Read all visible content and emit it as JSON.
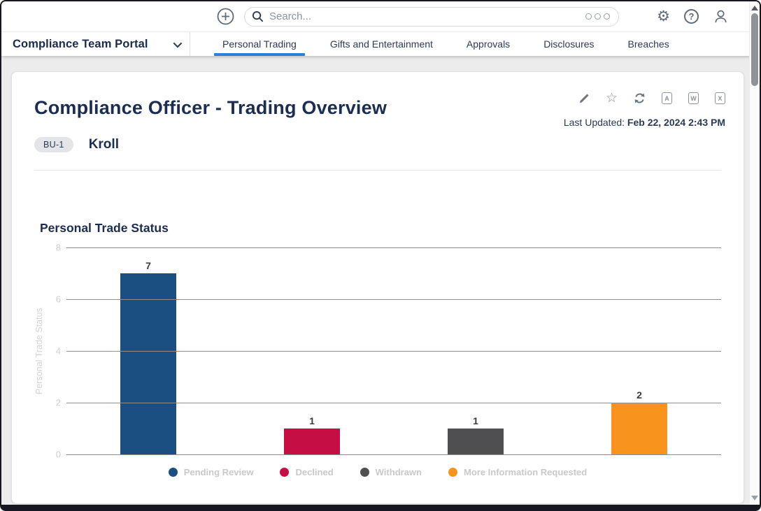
{
  "topbar": {
    "search": {
      "placeholder": "Search..."
    },
    "icons": {
      "add": "plus-circle-icon",
      "search": "magnifier-icon",
      "more": "three-dots-icon",
      "settings": "gear-icon",
      "help": "question-circle-icon",
      "profile": "person-icon"
    }
  },
  "navbar": {
    "brand": "Compliance Team Portal",
    "active_underline_color": "#2f7fd9",
    "tabs": [
      {
        "label": "Personal Trading",
        "active": true
      },
      {
        "label": "Gifts and Entertainment",
        "active": false
      },
      {
        "label": "Approvals",
        "active": false
      },
      {
        "label": "Disclosures",
        "active": false
      },
      {
        "label": "Breaches",
        "active": false
      }
    ]
  },
  "page": {
    "title": "Compliance Officer - Trading Overview",
    "last_updated_label": "Last Updated:",
    "last_updated_value": "Feb 22, 2024 2:43 PM",
    "badge_label": "BU-1",
    "business_unit_name": "Kroll",
    "toolbar_icons": [
      "edit-pencil",
      "favorite-star",
      "refresh",
      "export-pdf",
      "export-word",
      "export-excel"
    ],
    "export_glyphs": {
      "pdf": "A",
      "word": "W",
      "excel": "X"
    },
    "star_glyph": "☆",
    "gear_glyph": "⚙",
    "help_glyph": "?"
  },
  "chart_data": {
    "type": "bar",
    "title": "Personal Trade Status",
    "ylabel": "Personal Trade Status",
    "categories": [
      "Pending Review",
      "Declined",
      "Withdrawn",
      "More Information Requested"
    ],
    "values": [
      7,
      1,
      1,
      2
    ],
    "colors": [
      "#1b4f82",
      "#c40e44",
      "#4f4f51",
      "#f8941d"
    ],
    "ylim": [
      0,
      8
    ],
    "yticks": [
      0,
      2,
      4,
      6,
      8
    ],
    "grid": true,
    "legend_position": "bottom",
    "bar_value_labels": [
      "7",
      "1",
      "1",
      "2"
    ]
  }
}
